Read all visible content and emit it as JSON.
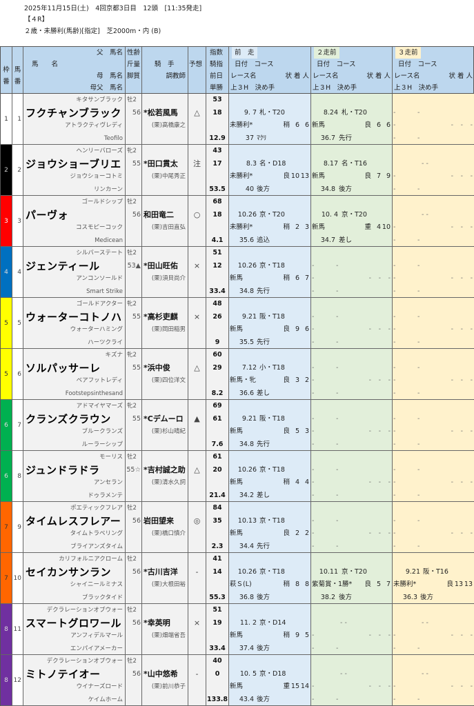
{
  "race_info": {
    "line1": "2025年11月15日(土)　4回京都3日目　12頭　[11:35発走]",
    "line2": "【４R】",
    "line3": "２歳・未勝利(馬齢)[指定]　芝2000m・内 (B)"
  },
  "header": {
    "waku": [
      "枠",
      "番"
    ],
    "uma": [
      "馬",
      "番"
    ],
    "name": "馬　　名",
    "sire": "父　馬名",
    "dam": "母　馬名",
    "damsire": "母父　馬名",
    "sex": "性齢",
    "weight": "斤量",
    "kyaku": "脚質",
    "jockey": "騎　手",
    "trainer": "調教師",
    "mark": "予想",
    "idx": [
      "指数",
      "騎指",
      "前日",
      "単勝"
    ],
    "races": [
      {
        "title": "前　走",
        "color": "#ddebf7"
      },
      {
        "title": "２走前",
        "color": "#e2efda"
      },
      {
        "title": "３走前",
        "color": "#fff2cc"
      }
    ],
    "sub1": "日付　コース",
    "sub2": "レース名",
    "sub3": "状 着 人",
    "sub4": "上３H　決め手"
  },
  "waku_colors": {
    "1": "#ffffff",
    "2": "#000000",
    "3": "#ff0000",
    "4": "#0070c0",
    "5": "#ffff00",
    "6": "#00b050",
    "7": "#ff6600",
    "8": "#7030a0"
  },
  "horses": [
    {
      "waku": "1",
      "num": "1",
      "sire": "キタサンブラック",
      "name": "フクチャンブラック",
      "dam": "アトラクティヴレディ",
      "damsire": "Teofilo",
      "sexage": "牡2",
      "weight": "56",
      "jockey": "*松若風馬",
      "trainer": "(栗)高橋康之",
      "mark": "△",
      "idx1": "53",
      "idx2": "18",
      "odds": "12.9",
      "races": [
        {
          "date": "9. 7",
          "course": "札・T20",
          "race": "未勝利*",
          "cond": "稍",
          "place": "6",
          "pop": "6",
          "h3": "37",
          "style": "ﾏｸﾘ"
        },
        {
          "date": "8.24",
          "course": "札・T20",
          "race": "新馬",
          "cond": "良",
          "place": "6",
          "pop": "6",
          "h3": "36.7",
          "style": "先行"
        },
        {
          "date": "-",
          "course": "-",
          "race": "-",
          "cond": "-",
          "place": "-",
          "pop": "-",
          "h3": "-",
          "style": "-"
        }
      ]
    },
    {
      "waku": "2",
      "num": "2",
      "sire": "ヘンリーバローズ",
      "name": "ジョウショーブリエ",
      "dam": "ジョウショーコトミ",
      "damsire": "リンカーン",
      "sexage": "牝2",
      "weight": "55",
      "jockey": "*田口貫太",
      "trainer": "(栗)中尾秀正",
      "mark": "注",
      "idx1": "43",
      "idx2": "17",
      "odds": "53.5",
      "races": [
        {
          "date": "8.3",
          "course": "名・D18",
          "race": "未勝利*",
          "cond": "良",
          "place": "10",
          "pop": "13",
          "h3": "40",
          "style": "後方"
        },
        {
          "date": "8.17",
          "course": "名・T16",
          "race": "新馬",
          "cond": "良",
          "place": "7",
          "pop": "9",
          "h3": "34.8",
          "style": "後方"
        },
        {
          "date": "- -",
          "course": "",
          "race": "-",
          "cond": "-",
          "place": "-",
          "pop": "-",
          "h3": "-",
          "style": "-"
        }
      ]
    },
    {
      "waku": "3",
      "num": "3",
      "sire": "ゴールドシップ",
      "name": "パーヴォ",
      "dam": "コスモピーコック",
      "damsire": "Medicean",
      "sexage": "牡2",
      "weight": "56",
      "jockey": "和田竜二",
      "trainer": "(栗)吉田直弘",
      "mark": "○",
      "idx1": "68",
      "idx2": "18",
      "odds": "4.1",
      "races": [
        {
          "date": "10.26",
          "course": "京・T20",
          "race": "未勝利*",
          "cond": "稍",
          "place": "2",
          "pop": "3",
          "h3": "35.6",
          "style": "追込"
        },
        {
          "date": "10. 4",
          "course": "京・T20",
          "race": "新馬",
          "cond": "重",
          "place": "4",
          "pop": "10",
          "h3": "34.7",
          "style": "差し"
        },
        {
          "date": "- -",
          "course": "",
          "race": "-",
          "cond": "-",
          "place": "-",
          "pop": "-",
          "h3": "-",
          "style": "-"
        }
      ]
    },
    {
      "waku": "4",
      "num": "4",
      "sire": "シルバーステート",
      "name": "ジェンティール",
      "dam": "アンコンソールド",
      "damsire": "Smart Strike",
      "sexage": "牡2",
      "weight": "53▲",
      "jockey": "*田山旺佑",
      "trainer": "(栗)須貝尚介",
      "mark": "×",
      "idx1": "51",
      "idx2": "12",
      "odds": "33.4",
      "races": [
        {
          "date": "10.26",
          "course": "京・T18",
          "race": "新馬",
          "cond": "稍",
          "place": "6",
          "pop": "7",
          "h3": "34.8",
          "style": "先行"
        },
        {
          "date": "-",
          "course": "-",
          "race": "-",
          "cond": "-",
          "place": "-",
          "pop": "-",
          "h3": "-",
          "style": "-"
        },
        {
          "date": "-",
          "course": "-",
          "race": "-",
          "cond": "-",
          "place": "-",
          "pop": "-",
          "h3": "-",
          "style": "-"
        }
      ]
    },
    {
      "waku": "5",
      "num": "5",
      "sire": "ゴールドアクター",
      "name": "ウォーターコトノハ",
      "dam": "ウォーターハミング",
      "damsire": "ハーツクライ",
      "sexage": "牝2",
      "weight": "55",
      "jockey": "*高杉吏麒",
      "trainer": "(栗)岡田稲男",
      "mark": "×",
      "idx1": "48",
      "idx2": "26",
      "odds": "9",
      "races": [
        {
          "date": "9.21",
          "course": "阪・T18",
          "race": "新馬",
          "cond": "良",
          "place": "9",
          "pop": "6",
          "h3": "35.5",
          "style": "先行"
        },
        {
          "date": "-",
          "course": "-",
          "race": "-",
          "cond": "-",
          "place": "-",
          "pop": "-",
          "h3": "-",
          "style": "-"
        },
        {
          "date": "-",
          "course": "-",
          "race": "-",
          "cond": "-",
          "place": "-",
          "pop": "-",
          "h3": "-",
          "style": "-"
        }
      ]
    },
    {
      "waku": "5",
      "num": "6",
      "sire": "キズナ",
      "name": "ソルパッサーレ",
      "dam": "ベアフットレディ",
      "damsire": "Footstepsinthesand",
      "sexage": "牝2",
      "weight": "55",
      "jockey": "*浜中俊",
      "trainer": "(栗)四位洋文",
      "mark": "△",
      "idx1": "60",
      "idx2": "29",
      "odds": "8.2",
      "races": [
        {
          "date": "7.12",
          "course": "小・T18",
          "race": "新馬・牝",
          "cond": "良",
          "place": "3",
          "pop": "2",
          "h3": "36.6",
          "style": "差し"
        },
        {
          "date": "-",
          "course": "-",
          "race": "-",
          "cond": "-",
          "place": "-",
          "pop": "-",
          "h3": "-",
          "style": "-"
        },
        {
          "date": "-",
          "course": "-",
          "race": "-",
          "cond": "-",
          "place": "-",
          "pop": "-",
          "h3": "-",
          "style": "-"
        }
      ]
    },
    {
      "waku": "6",
      "num": "7",
      "sire": "アドマイヤマーズ",
      "name": "クランズクラウン",
      "dam": "ブルークランズ",
      "damsire": "ルーラーシップ",
      "sexage": "牝2",
      "weight": "55",
      "jockey": "*Cデムーロ",
      "trainer": "(栗)杉山晴紀",
      "mark": "▲",
      "idx1": "69",
      "idx2": "61",
      "odds": "7.6",
      "races": [
        {
          "date": "9.21",
          "course": "阪・T18",
          "race": "新馬",
          "cond": "良",
          "place": "5",
          "pop": "3",
          "h3": "34.8",
          "style": "先行"
        },
        {
          "date": "-",
          "course": "-",
          "race": "-",
          "cond": "-",
          "place": "-",
          "pop": "-",
          "h3": "-",
          "style": "-"
        },
        {
          "date": "-",
          "course": "-",
          "race": "-",
          "cond": "-",
          "place": "-",
          "pop": "-",
          "h3": "-",
          "style": "-"
        }
      ]
    },
    {
      "waku": "6",
      "num": "8",
      "sire": "モーリス",
      "name": "ジュンドラドラ",
      "dam": "アンセラン",
      "damsire": "ドゥラメンテ",
      "sexage": "牡2",
      "weight": "55☆",
      "jockey": "*吉村誠之助",
      "trainer": "(栗)清水久詞",
      "mark": "△",
      "idx1": "61",
      "idx2": "20",
      "odds": "21.4",
      "races": [
        {
          "date": "10.26",
          "course": "京・T18",
          "race": "新馬",
          "cond": "稍",
          "place": "4",
          "pop": "4",
          "h3": "34.2",
          "style": "差し"
        },
        {
          "date": "-",
          "course": "-",
          "race": "-",
          "cond": "-",
          "place": "-",
          "pop": "-",
          "h3": "-",
          "style": "-"
        },
        {
          "date": "-",
          "course": "-",
          "race": "-",
          "cond": "-",
          "place": "-",
          "pop": "-",
          "h3": "-",
          "style": "-"
        }
      ]
    },
    {
      "waku": "7",
      "num": "9",
      "sire": "ポエティックフレア",
      "name": "タイムレスフレアー",
      "dam": "タイムトラベリング",
      "damsire": "ブライアンズタイム",
      "sexage": "牡2",
      "weight": "56",
      "jockey": "岩田望来",
      "trainer": "(栗)橋口慎介",
      "mark": "◎",
      "idx1": "84",
      "idx2": "35",
      "odds": "2.3",
      "races": [
        {
          "date": "10.13",
          "course": "京・T18",
          "race": "新馬",
          "cond": "良",
          "place": "2",
          "pop": "2",
          "h3": "34.4",
          "style": "先行"
        },
        {
          "date": "-",
          "course": "-",
          "race": "-",
          "cond": "-",
          "place": "-",
          "pop": "-",
          "h3": "-",
          "style": "-"
        },
        {
          "date": "-",
          "course": "-",
          "race": "-",
          "cond": "-",
          "place": "-",
          "pop": "-",
          "h3": "-",
          "style": "-"
        }
      ]
    },
    {
      "waku": "7",
      "num": "10",
      "sire": "カリフォルニアクローム",
      "name": "セイカンサンラン",
      "dam": "シャイニールミナス",
      "damsire": "ブラックタイド",
      "sexage": "牡2",
      "weight": "56",
      "jockey": "*古川吉洋",
      "trainer": "(栗)大根田裕",
      "mark": "-",
      "idx1": "41",
      "idx2": "14",
      "odds": "55.3",
      "races": [
        {
          "date": "10.26",
          "course": "京・T18",
          "race": "萩Ｓ(L)",
          "cond": "稍",
          "place": "8",
          "pop": "8",
          "h3": "36.8",
          "style": "後方"
        },
        {
          "date": "10.11",
          "course": "京・T20",
          "race": "紫菊賞・1勝*",
          "cond": "良",
          "place": "5",
          "pop": "7",
          "h3": "38.2",
          "style": "後方"
        },
        {
          "date": "9.21",
          "course": "阪・T16",
          "race": "未勝利*",
          "cond": "良",
          "place": "13",
          "pop": "13",
          "h3": "36.3",
          "style": "後方"
        }
      ]
    },
    {
      "waku": "8",
      "num": "11",
      "sire": "デクラレーションオブウォー",
      "name": "スマートグロワール",
      "dam": "アンフィデルマール",
      "damsire": "エンパイアメーカー",
      "sexage": "牡2",
      "weight": "56",
      "jockey": "*幸英明",
      "trainer": "(栗)畑端省吾",
      "mark": "×",
      "idx1": "51",
      "idx2": "19",
      "odds": "33.4",
      "races": [
        {
          "date": "11. 2",
          "course": "京・D14",
          "race": "新馬",
          "cond": "稍",
          "place": "9",
          "pop": "5",
          "h3": "37.4",
          "style": "後方"
        },
        {
          "date": "- -",
          "course": "",
          "race": "-",
          "cond": "-",
          "place": "-",
          "pop": "-",
          "h3": "-",
          "style": "-"
        },
        {
          "date": "- -",
          "course": "",
          "race": "-",
          "cond": "-",
          "place": "-",
          "pop": "-",
          "h3": "-",
          "style": "-"
        }
      ]
    },
    {
      "waku": "8",
      "num": "12",
      "sire": "デクラレーションオブウォー",
      "name": "ミトノテイオー",
      "dam": "ウイナーズロード",
      "damsire": "ケイムホーム",
      "sexage": "牡2",
      "weight": "56",
      "jockey": "*山中悠希",
      "trainer": "(栗)前川恭子",
      "mark": "-",
      "idx1": "40",
      "idx2": "0",
      "odds": "133.8",
      "races": [
        {
          "date": "10. 5",
          "course": "京・D18",
          "race": "新馬",
          "cond": "重",
          "place": "15",
          "pop": "14",
          "h3": "43.4",
          "style": "後方"
        },
        {
          "date": "- -",
          "course": "",
          "race": "-",
          "cond": "-",
          "place": "-",
          "pop": "-",
          "h3": "-",
          "style": "-"
        },
        {
          "date": "- -",
          "course": "",
          "race": "-",
          "cond": "-",
          "place": "-",
          "pop": "-",
          "h3": "-",
          "style": "-"
        }
      ]
    }
  ]
}
